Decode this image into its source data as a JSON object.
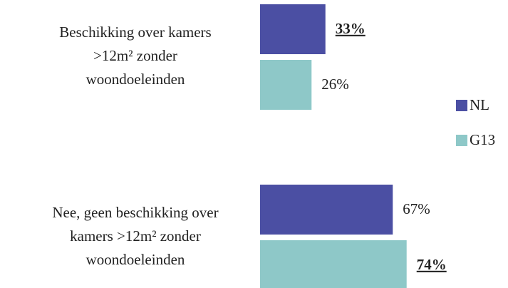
{
  "chart_data": {
    "type": "barh",
    "categories": [
      "Beschikking over kamers\n>12m²  zonder\nwoondoeleinden",
      "Nee, geen beschikking over\nkamers >12m² zonder\nwoondoeleinden"
    ],
    "series": [
      {
        "name": "NL",
        "color": "#4b4fa3",
        "values": [
          33,
          67
        ],
        "value_labels": [
          "33%",
          "67%"
        ]
      },
      {
        "name": "G13",
        "color": "#8ec8c8",
        "values": [
          26,
          74
        ],
        "value_labels": [
          "26%",
          "74%"
        ]
      }
    ],
    "xlim": [
      0,
      100
    ],
    "legend": "right"
  }
}
